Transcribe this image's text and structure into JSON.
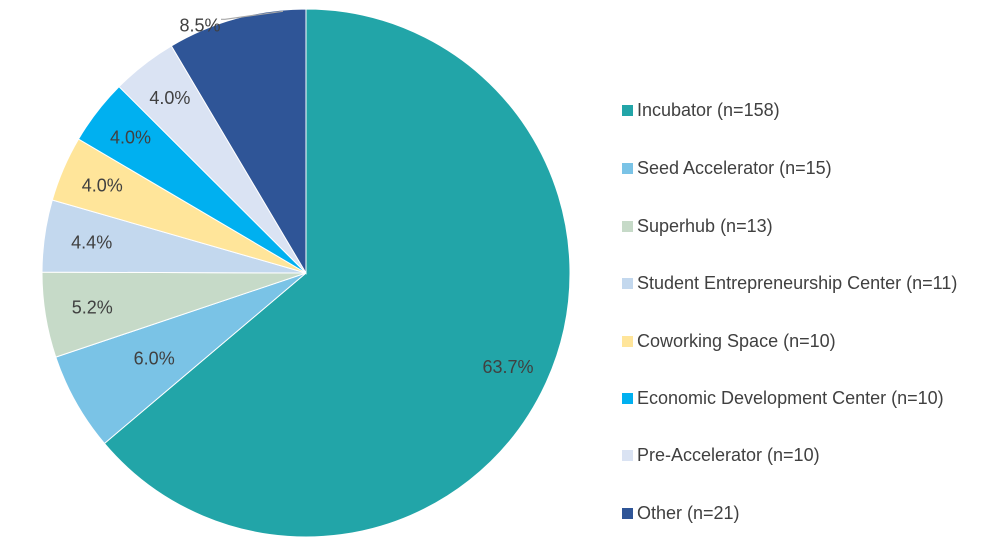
{
  "chart_data": {
    "type": "pie",
    "title": "",
    "legend_position": "right",
    "start_angle_deg": 0,
    "direction": "clockwise",
    "slices": [
      {
        "label": "Incubator (n=158)",
        "value": 63.7,
        "display": "63.7%",
        "color": "#22A5A8"
      },
      {
        "label": "Seed Accelerator (n=15)",
        "value": 6.0,
        "display": "6.0%",
        "color": "#7AC3E6"
      },
      {
        "label": "Superhub (n=13)",
        "value": 5.2,
        "display": "5.2%",
        "color": "#C6DAC8"
      },
      {
        "label": "Student Entrepreneurship Center (n=11)",
        "value": 4.4,
        "display": "4.4%",
        "color": "#C3D8EE"
      },
      {
        "label": "Coworking Space (n=10)",
        "value": 4.0,
        "display": "4.0%",
        "color": "#FFE59A"
      },
      {
        "label": "Economic Development Center (n=10)",
        "value": 4.0,
        "display": "4.0%",
        "color": "#00B0F0"
      },
      {
        "label": "Pre-Accelerator (n=10)",
        "value": 4.0,
        "display": "4.0%",
        "color": "#DAE3F3"
      },
      {
        "label": "Other (n=21)",
        "value": 8.5,
        "display": "8.5%",
        "color": "#2F5597"
      }
    ]
  }
}
